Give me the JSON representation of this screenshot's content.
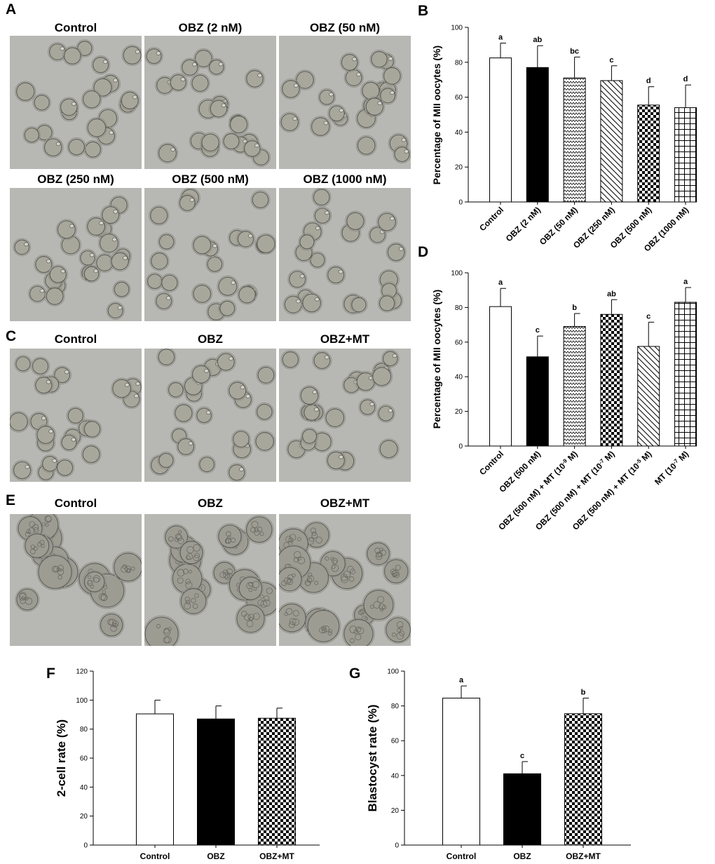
{
  "panels": {
    "A": {
      "letter": "A",
      "images": [
        {
          "title": "Control"
        },
        {
          "title": "OBZ (2 nM)"
        },
        {
          "title": "OBZ (50 nM)"
        },
        {
          "title": "OBZ (250 nM)"
        },
        {
          "title": "OBZ (500 nM)"
        },
        {
          "title": "OBZ (1000 nM)"
        }
      ]
    },
    "C": {
      "letter": "C",
      "images": [
        {
          "title": "Control"
        },
        {
          "title": "OBZ"
        },
        {
          "title": "OBZ+MT"
        }
      ]
    },
    "E": {
      "letter": "E",
      "images": [
        {
          "title": "Control"
        },
        {
          "title": "OBZ"
        },
        {
          "title": "OBZ+MT"
        }
      ]
    }
  },
  "chart_data": [
    {
      "panel": "B",
      "type": "bar",
      "ylabel": "Percentage of MII oocytes (%)",
      "ylim": [
        0,
        100
      ],
      "yticks": [
        0,
        20,
        40,
        60,
        80,
        100
      ],
      "categories": [
        "Control",
        "OBZ (2 nM)",
        "OBZ (50 nM)",
        "OBZ (250 nM)",
        "OBZ (500 nM)",
        "OBZ (1000 nM)"
      ],
      "values": [
        82.5,
        77,
        71,
        69.5,
        55.5,
        54
      ],
      "errors": [
        8.5,
        12.5,
        12,
        8.5,
        10.5,
        13
      ],
      "significance": [
        "a",
        "ab",
        "bc",
        "c",
        "d",
        "d"
      ],
      "patterns": [
        "white",
        "black",
        "zigzag",
        "diagonal",
        "checker",
        "grid"
      ]
    },
    {
      "panel": "D",
      "type": "bar",
      "ylabel": "Percentage of MII oocytes (%)",
      "ylim": [
        0,
        100
      ],
      "yticks": [
        0,
        20,
        40,
        60,
        80,
        100
      ],
      "categories": [
        {
          "text": "Control"
        },
        {
          "text": "OBZ (500 nM)"
        },
        {
          "text": "OBZ (500 nM) + MT (10",
          "sup": "-9",
          "tail": " M)"
        },
        {
          "text": "OBZ (500 nM) + MT (10",
          "sup": "-7",
          "tail": " M)"
        },
        {
          "text": "OBZ (500 nM) + MT (10",
          "sup": "-5",
          "tail": " M)"
        },
        {
          "text": "MT (10",
          "sup": "-7",
          "tail": " M)"
        }
      ],
      "values": [
        80.5,
        51.5,
        69,
        76,
        57.5,
        83
      ],
      "errors": [
        10.5,
        12,
        7.5,
        8.5,
        14,
        8.5
      ],
      "significance": [
        "a",
        "c",
        "b",
        "ab",
        "c",
        "a"
      ],
      "patterns": [
        "white",
        "black",
        "zigzag",
        "checker",
        "diagonal",
        "grid"
      ]
    },
    {
      "panel": "F",
      "type": "bar",
      "ylabel": "2-cell rate (%)",
      "ylim": [
        0,
        120
      ],
      "yticks": [
        0,
        20,
        40,
        60,
        80,
        100,
        120
      ],
      "categories": [
        "Control",
        "OBZ",
        "OBZ+MT"
      ],
      "values": [
        90.5,
        87,
        87.5
      ],
      "errors": [
        9.5,
        9,
        7
      ],
      "significance": [
        "",
        "",
        ""
      ],
      "patterns": [
        "white",
        "black",
        "checker"
      ]
    },
    {
      "panel": "G",
      "type": "bar",
      "ylabel": "Blastocyst rate (%)",
      "ylim": [
        0,
        100
      ],
      "yticks": [
        0,
        20,
        40,
        60,
        80,
        100
      ],
      "categories": [
        "Control",
        "OBZ",
        "OBZ+MT"
      ],
      "values": [
        84.5,
        41,
        75.5
      ],
      "errors": [
        7,
        7,
        9
      ],
      "significance": [
        "a",
        "c",
        "b"
      ],
      "patterns": [
        "white",
        "black",
        "checker"
      ]
    }
  ]
}
